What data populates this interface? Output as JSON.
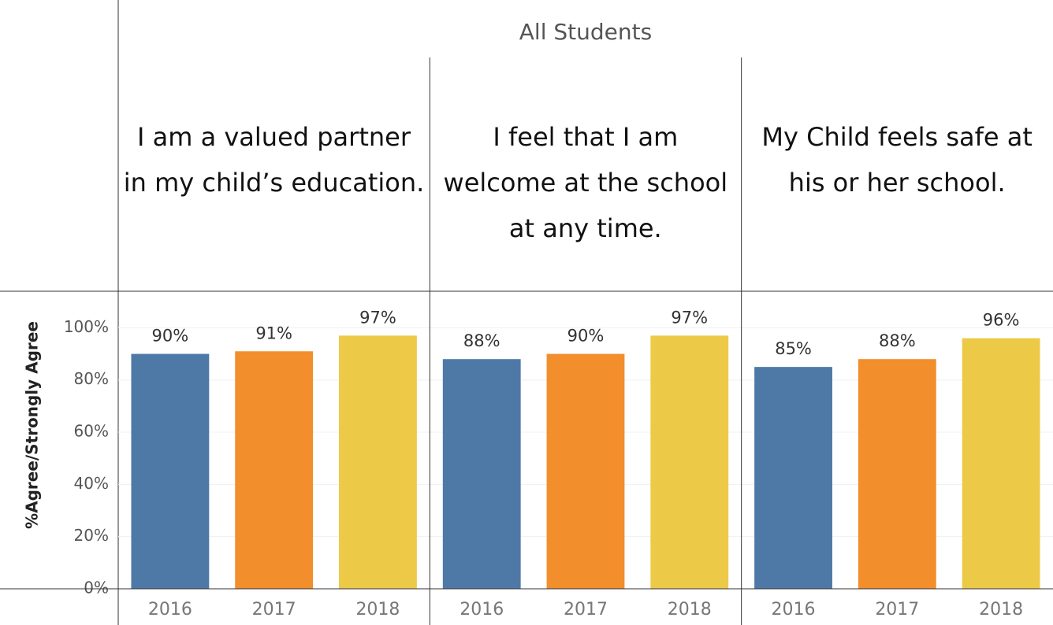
{
  "chart_data": {
    "type": "bar",
    "title": "All Students",
    "ylabel": "%Agree/Strongly Agree",
    "ylim": [
      0,
      114
    ],
    "yticks": [
      {
        "value": 0,
        "label": "0%"
      },
      {
        "value": 20,
        "label": "20%"
      },
      {
        "value": 40,
        "label": "40%"
      },
      {
        "value": 60,
        "label": "60%"
      },
      {
        "value": 80,
        "label": "80%"
      },
      {
        "value": 100,
        "label": "100%"
      }
    ],
    "grid": true,
    "colors": [
      "#4e79a7",
      "#f28e2b",
      "#edc948"
    ],
    "panels": [
      {
        "title": "I am a valued partner in my child’s education.",
        "categories": [
          "2016",
          "2017",
          "2018"
        ],
        "values": [
          90,
          91,
          97
        ],
        "value_labels": [
          "90%",
          "91%",
          "97%"
        ]
      },
      {
        "title": "I feel that I am welcome at the school at any time.",
        "categories": [
          "2016",
          "2017",
          "2018"
        ],
        "values": [
          88,
          90,
          97
        ],
        "value_labels": [
          "88%",
          "90%",
          "97%"
        ]
      },
      {
        "title": "My Child feels safe at his or her school.",
        "categories": [
          "2016",
          "2017",
          "2018"
        ],
        "values": [
          85,
          88,
          96
        ],
        "value_labels": [
          "85%",
          "88%",
          "96%"
        ]
      }
    ]
  }
}
